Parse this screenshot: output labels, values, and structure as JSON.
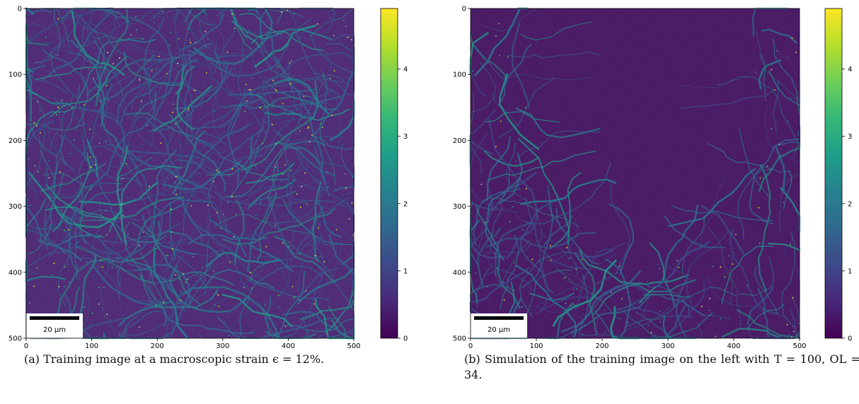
{
  "colors": {
    "viridis": [
      "#440154",
      "#482878",
      "#3e4989",
      "#31688e",
      "#26828e",
      "#1f9e89",
      "#35b779",
      "#6ece58",
      "#b5de2b",
      "#fde725"
    ],
    "background": "#ffffff"
  },
  "panels": [
    {
      "id": "a",
      "scalebar_label": "20 µm",
      "caption": "(a) Training image at a macroscopic strain ϵ = 12%.",
      "x_ticks": [
        "0",
        "100",
        "200",
        "300",
        "400",
        "500"
      ],
      "y_ticks": [
        "0",
        "100",
        "200",
        "300",
        "400",
        "500"
      ],
      "colorbar_ticks": [
        "0",
        "1",
        "2",
        "3",
        "4"
      ]
    },
    {
      "id": "b",
      "scalebar_label": "20 µm",
      "caption": "(b) Simulation of the training image on the left with T = 100, OL = 34.",
      "x_ticks": [
        "0",
        "100",
        "200",
        "300",
        "400",
        "500"
      ],
      "y_ticks": [
        "0",
        "100",
        "200",
        "300",
        "400",
        "500"
      ],
      "colorbar_ticks": [
        "0",
        "1",
        "2",
        "3",
        "4"
      ]
    }
  ],
  "chart_data": [
    {
      "type": "heatmap",
      "title": "",
      "xlabel": "",
      "ylabel": "",
      "xlim": [
        0,
        500
      ],
      "ylim": [
        500,
        0
      ],
      "colormap": "viridis",
      "colorbar_range": [
        0,
        4.9
      ],
      "colorbar_ticks": [
        0,
        1,
        2,
        3,
        4
      ],
      "description_values": "strain-field map; dense network of high-strain bands over whole image"
    },
    {
      "type": "heatmap",
      "title": "",
      "xlabel": "",
      "ylabel": "",
      "xlim": [
        0,
        500
      ],
      "ylim": [
        500,
        0
      ],
      "colormap": "viridis",
      "colorbar_range": [
        0,
        4.9
      ],
      "colorbar_ticks": [
        0,
        1,
        2,
        3,
        4
      ],
      "description_values": "simulated field; mostly low values, high-strain bands only near left, right and bottom borders"
    }
  ]
}
